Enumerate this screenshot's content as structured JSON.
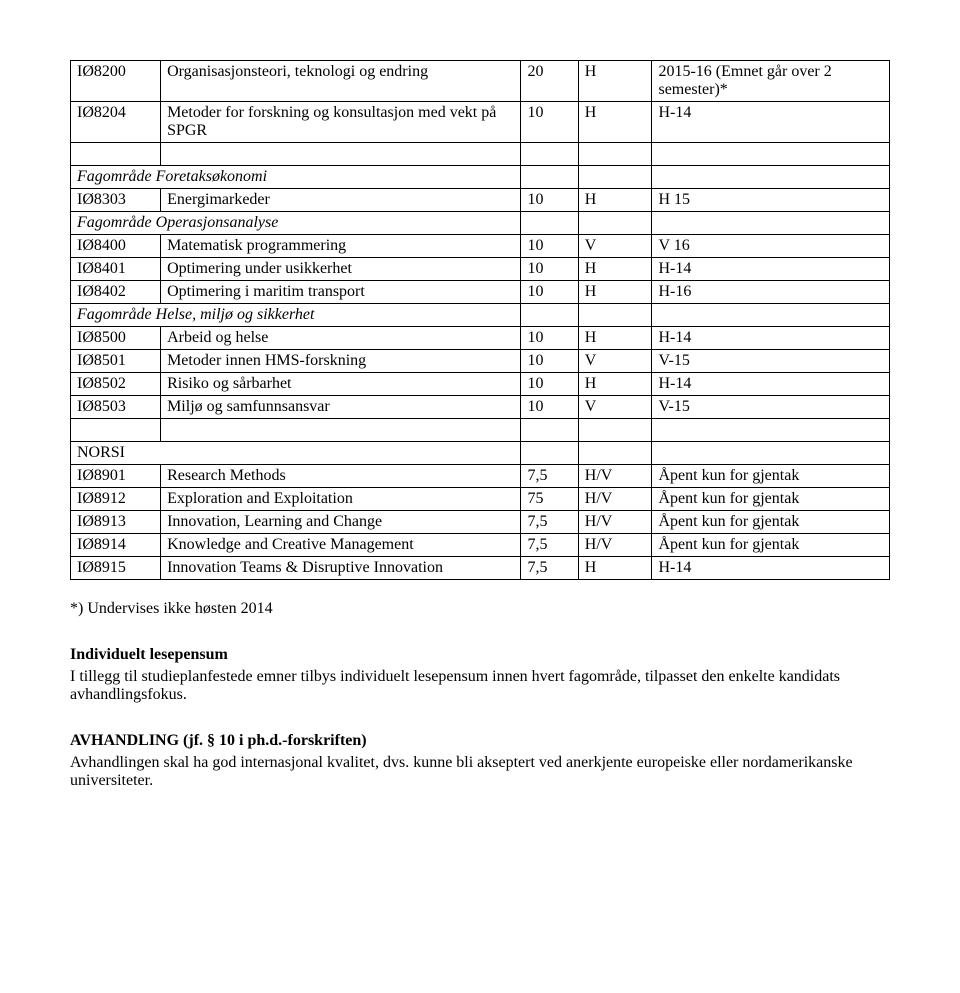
{
  "table": {
    "rows": [
      {
        "type": "data",
        "code": "IØ8200",
        "title": "Organisasjonsteori, teknologi og endring",
        "pts": "20",
        "sem": "H",
        "note": "2015-16  (Emnet går over 2 semester)*"
      },
      {
        "type": "data",
        "code": "IØ8204",
        "title": "Metoder for forskning og konsultasjon med vekt på SPGR",
        "pts": "10",
        "sem": "H",
        "note": " H-14"
      },
      {
        "type": "blank"
      },
      {
        "type": "section",
        "label": "Fagområde Foretaksøkonomi"
      },
      {
        "type": "data",
        "code": "IØ8303",
        "title": "Energimarkeder",
        "pts": "10",
        "sem": "H",
        "note": "H 15"
      },
      {
        "type": "section",
        "label": "Fagområde Operasjonsanalyse"
      },
      {
        "type": "data",
        "code": "IØ8400",
        "title": "Matematisk programmering",
        "pts": "10",
        "sem": "V",
        "note": "V 16"
      },
      {
        "type": "data",
        "code": "IØ8401",
        "title": "Optimering under usikkerhet",
        "pts": "10",
        "sem": "H",
        "note": "H-14"
      },
      {
        "type": "data",
        "code": "IØ8402",
        "title": "Optimering i maritim transport",
        "pts": "10",
        "sem": "H",
        "note": "H-16"
      },
      {
        "type": "section",
        "label": "Fagområde Helse, miljø og sikkerhet"
      },
      {
        "type": "data",
        "code": "IØ8500",
        "title": "Arbeid og helse",
        "pts": "10",
        "sem": "H",
        "note": "H-14"
      },
      {
        "type": "data",
        "code": "IØ8501",
        "title": "Metoder innen HMS-forskning",
        "pts": "10",
        "sem": "V",
        "note": "V-15"
      },
      {
        "type": "data",
        "code": "IØ8502",
        "title": "Risiko og sårbarhet",
        "pts": "10",
        "sem": "H",
        "note": "H-14"
      },
      {
        "type": "data",
        "code": "IØ8503",
        "title": "Miljø og samfunnsansvar",
        "pts": "10",
        "sem": "V",
        "note": "V-15"
      },
      {
        "type": "blank"
      },
      {
        "type": "norsi",
        "label": "NORSI"
      },
      {
        "type": "data",
        "code": "IØ8901",
        "title": "Research Methods",
        "pts": "7,5",
        "sem": "H/V",
        "note": "Åpent kun for gjentak"
      },
      {
        "type": "data",
        "code": "IØ8912",
        "title": "Exploration and Exploitation",
        "pts": "75",
        "sem": "H/V",
        "note": "Åpent kun for gjentak"
      },
      {
        "type": "data",
        "code": "IØ8913",
        "title": "Innovation, Learning and Change",
        "pts": "7,5",
        "sem": "H/V",
        "note": "Åpent kun for gjentak"
      },
      {
        "type": "data",
        "code": "IØ8914",
        "title": "Knowledge and Creative Management",
        "pts": "7,5",
        "sem": "H/V",
        "note": "Åpent kun for gjentak"
      },
      {
        "type": "data",
        "code": "IØ8915",
        "title": "Innovation Teams & Disruptive Innovation",
        "pts": "7,5",
        "sem": "H",
        "note": "H-14"
      }
    ]
  },
  "footnote": "*) Undervises ikke høsten 2014",
  "individual": {
    "heading": "Individuelt lesepensum",
    "body": "I tillegg til studieplanfestede emner tilbys individuelt lesepensum innen hvert fagområde, tilpasset den enkelte kandidats avhandlingsfokus."
  },
  "avhandling": {
    "heading": "AVHANDLING (jf. § 10 i ph.d.-forskriften)",
    "body": "Avhandlingen skal ha god internasjonal kvalitet, dvs. kunne bli akseptert ved anerkjente europeiske eller nordamerikanske universiteter."
  }
}
